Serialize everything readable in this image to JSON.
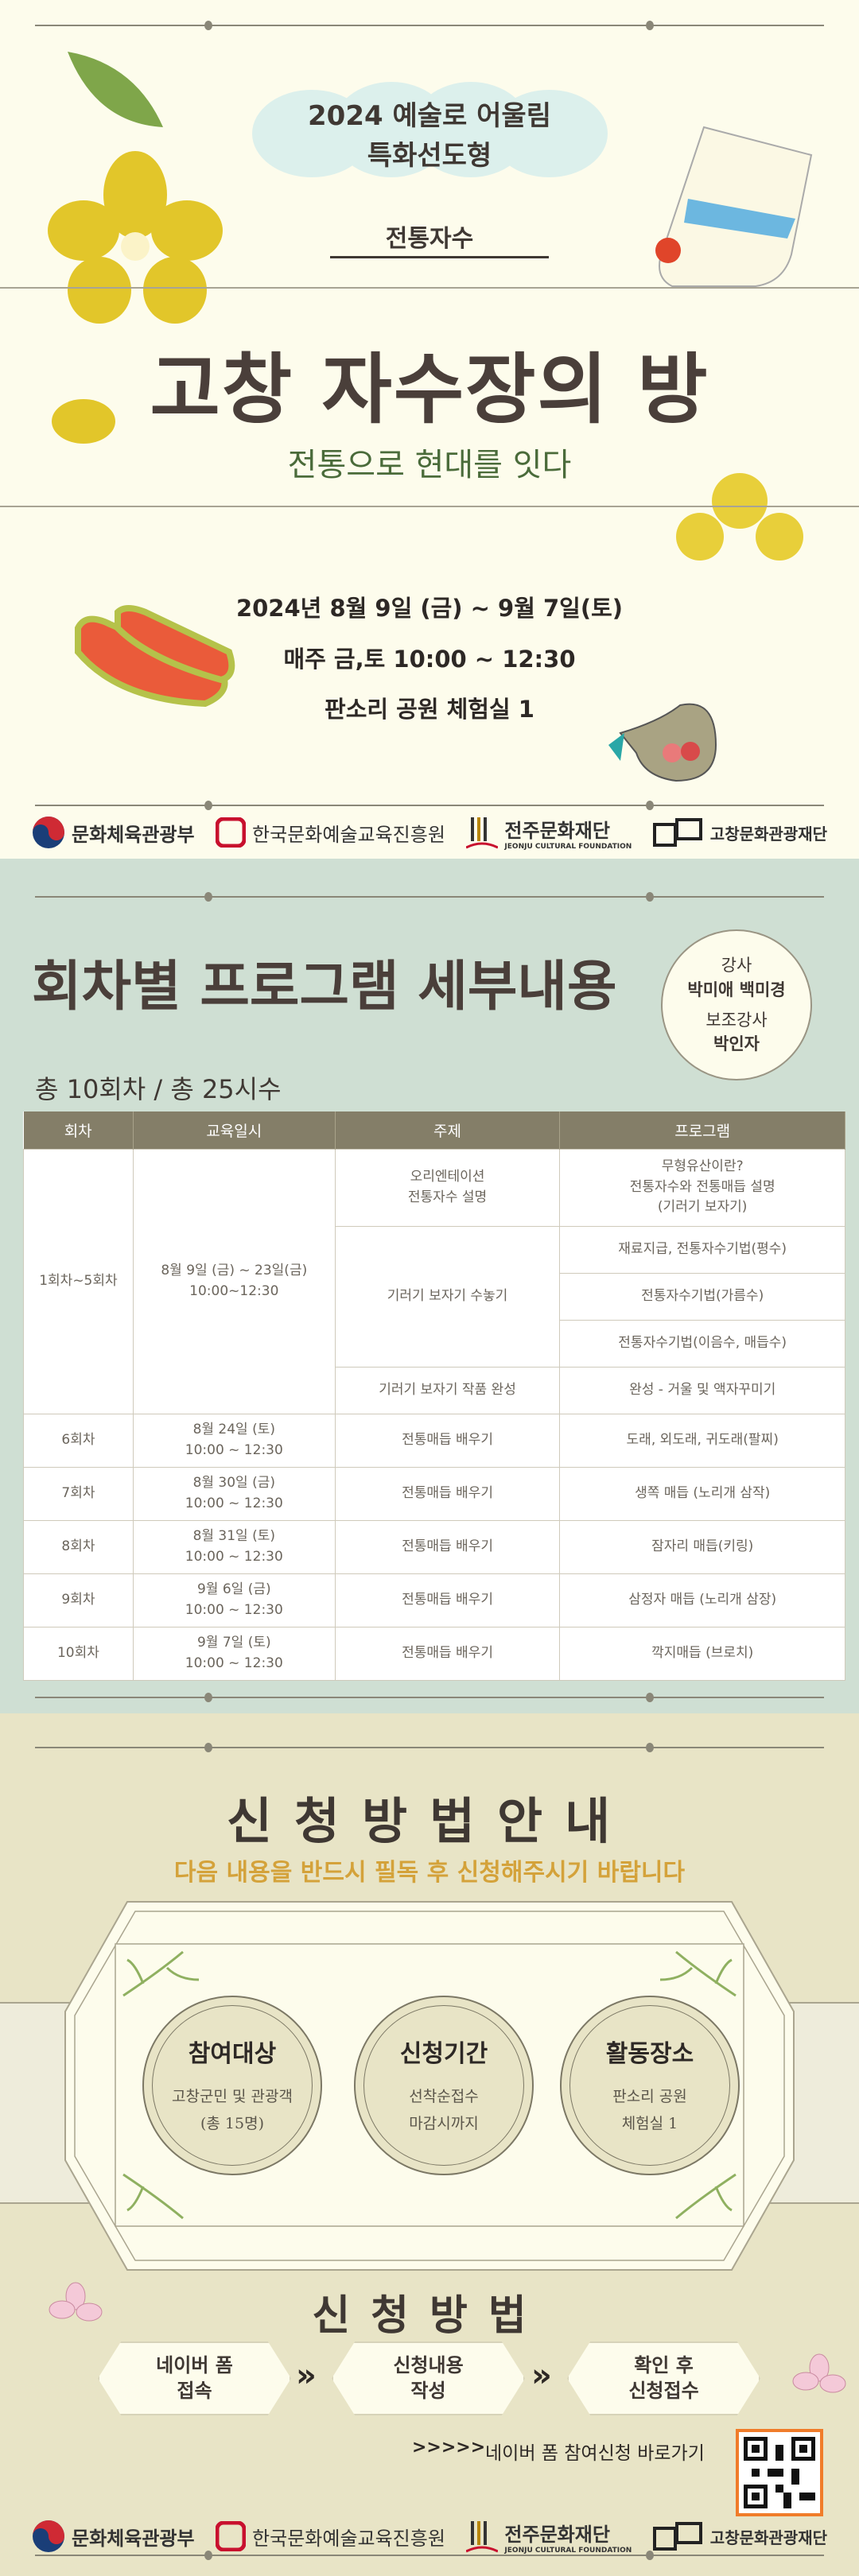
{
  "header": {
    "program": "2024 예술로 어울림",
    "type": "특화선도형",
    "category": "전통자수",
    "title": "고창 자수장의 방",
    "subtitle": "전통으로 현대를 잇다"
  },
  "info": {
    "period": "2024년 8월 9일 (금) ~ 9월 7일(토)",
    "schedule": "매주 금,토 10:00 ~ 12:30",
    "venue": "판소리 공원 체험실 1"
  },
  "logos": {
    "mcst": "문화체육관광부",
    "arte": "한국문화예술교육진흥원",
    "jeonju": "전주문화재단",
    "jeonju_en": "JEONJU CULTURAL FOUNDATION",
    "gochang": "고창문화관광재단"
  },
  "program": {
    "title": "회차별 프로그램 세부내용",
    "instructor_label": "강사",
    "instructor": "박미애 백미경",
    "assistant_label": "보조강사",
    "assistant": "박인자",
    "total": "총 10회차 / 총 25시수",
    "columns": [
      "회차",
      "교육일시",
      "주제",
      "프로그램"
    ],
    "group": {
      "session": "1회차~5회차",
      "date": "8월 9일 (금) ~ 23일(금)",
      "time": "10:00~12:30",
      "topics": [
        "오리엔테이션\n전통자수 설명",
        "기러기 보자기 수놓기",
        "기러기 보자기 작품 완성"
      ],
      "programs": [
        "무형유산이란?\n전통자수와 전통매듭 설명\n(기러기 보자기)",
        "재료지급, 전통자수기법(평수)",
        "전통자수기법(가름수)",
        "전통자수기법(이음수, 매듭수)",
        "완성 - 거울 및 액자꾸미기"
      ]
    },
    "rows": [
      {
        "session": "6회차",
        "date": "8월 24일 (토)",
        "time": "10:00 ~ 12:30",
        "topic": "전통매듭 배우기",
        "program": "도래, 외도래, 귀도래(팔찌)"
      },
      {
        "session": "7회차",
        "date": "8월 30일 (금)",
        "time": "10:00 ~ 12:30",
        "topic": "전통매듭 배우기",
        "program": "생쪽 매듭 (노리개 삼작)"
      },
      {
        "session": "8회차",
        "date": "8월 31일 (토)",
        "time": "10:00 ~ 12:30",
        "topic": "전통매듭 배우기",
        "program": "잠자리 매듭(키링)"
      },
      {
        "session": "9회차",
        "date": "9월 6일 (금)",
        "time": "10:00 ~ 12:30",
        "topic": "전통매듭 배우기",
        "program": "삼정자 매듭 (노리개 삼장)"
      },
      {
        "session": "10회차",
        "date": "9월 7일 (토)",
        "time": "10:00 ~ 12:30",
        "topic": "전통매듭 배우기",
        "program": "깍지매듭 (브로치)"
      }
    ]
  },
  "apply": {
    "title": "신청방법안내",
    "notice": "다음 내용을 반드시 필독 후 신청해주시기 바랍니다",
    "cards": [
      {
        "title": "참여대상",
        "line1": "고창군민 및 관광객",
        "line2": "(총 15명)"
      },
      {
        "title": "신청기간",
        "line1": "선착순접수",
        "line2": "마감시까지"
      },
      {
        "title": "활동장소",
        "line1": "판소리 공원",
        "line2": "체험실 1"
      }
    ],
    "method_title": "신청방법",
    "steps": [
      {
        "l1": "네이버 폼",
        "l2": "접속"
      },
      {
        "l1": "신청내용",
        "l2": "작성"
      },
      {
        "l1": "확인 후",
        "l2": "신청접수"
      }
    ],
    "link_arrows": ">>>>>",
    "link": "네이버 폼 참여신청 바로가기"
  },
  "colors": {
    "cream": "#fdfcec",
    "sage": "#cfdfd3",
    "beige": "#e8e4c6",
    "header_brown": "#847e68",
    "notice_orange": "#d4a23a",
    "qr_border": "#f07c2a"
  }
}
